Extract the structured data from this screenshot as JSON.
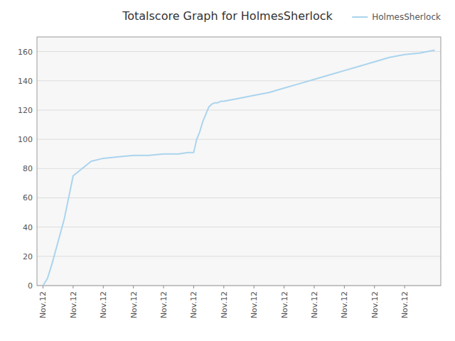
{
  "chart_data": {
    "type": "line",
    "title": "Totalscore Graph for HolmesSherlock",
    "x": [
      0,
      0.15,
      0.3,
      0.5,
      0.7,
      1.0,
      1.3,
      1.6,
      2.0,
      2.5,
      3.0,
      3.5,
      4.0,
      4.5,
      4.8,
      5.0,
      5.1,
      5.2,
      5.3,
      5.4,
      5.5,
      5.6,
      5.7,
      5.8,
      5.9,
      6.0,
      6.5,
      7.0,
      7.5,
      8.0,
      8.5,
      9.0,
      9.5,
      10.0,
      10.5,
      11.0,
      11.5,
      12.0,
      12.5,
      13.0
    ],
    "series": [
      {
        "name": "HolmesSherlock",
        "color": "#aad4ee",
        "values": [
          0,
          5,
          15,
          30,
          45,
          75,
          80,
          85,
          87,
          88,
          89,
          89,
          90,
          90,
          91,
          91,
          100,
          105,
          112,
          117,
          122,
          124,
          125,
          125,
          126,
          126,
          128,
          130,
          132,
          135,
          138,
          141,
          144,
          147,
          150,
          153,
          156,
          158,
          159,
          161
        ]
      }
    ],
    "xlim": [
      -0.2,
      13.2
    ],
    "ylim": [
      0,
      170
    ],
    "yticks": [
      0,
      20,
      40,
      60,
      80,
      100,
      120,
      140,
      160
    ],
    "xticks": [
      {
        "value": 0,
        "label": "Nov.12"
      },
      {
        "value": 1,
        "label": "Nov.12"
      },
      {
        "value": 2,
        "label": "Nov.12"
      },
      {
        "value": 3,
        "label": "Nov.12"
      },
      {
        "value": 4,
        "label": "Nov.12"
      },
      {
        "value": 5,
        "label": "Nov.12"
      },
      {
        "value": 6,
        "label": "Nov.12"
      },
      {
        "value": 7,
        "label": "Nov.12"
      },
      {
        "value": 8,
        "label": "Nov.12"
      },
      {
        "value": 9,
        "label": "Nov.12"
      },
      {
        "value": 10,
        "label": "Nov.12"
      },
      {
        "value": 11,
        "label": "Nov.12"
      },
      {
        "value": 12,
        "label": "Nov.12"
      }
    ],
    "grid": true,
    "legend": "top-right"
  }
}
